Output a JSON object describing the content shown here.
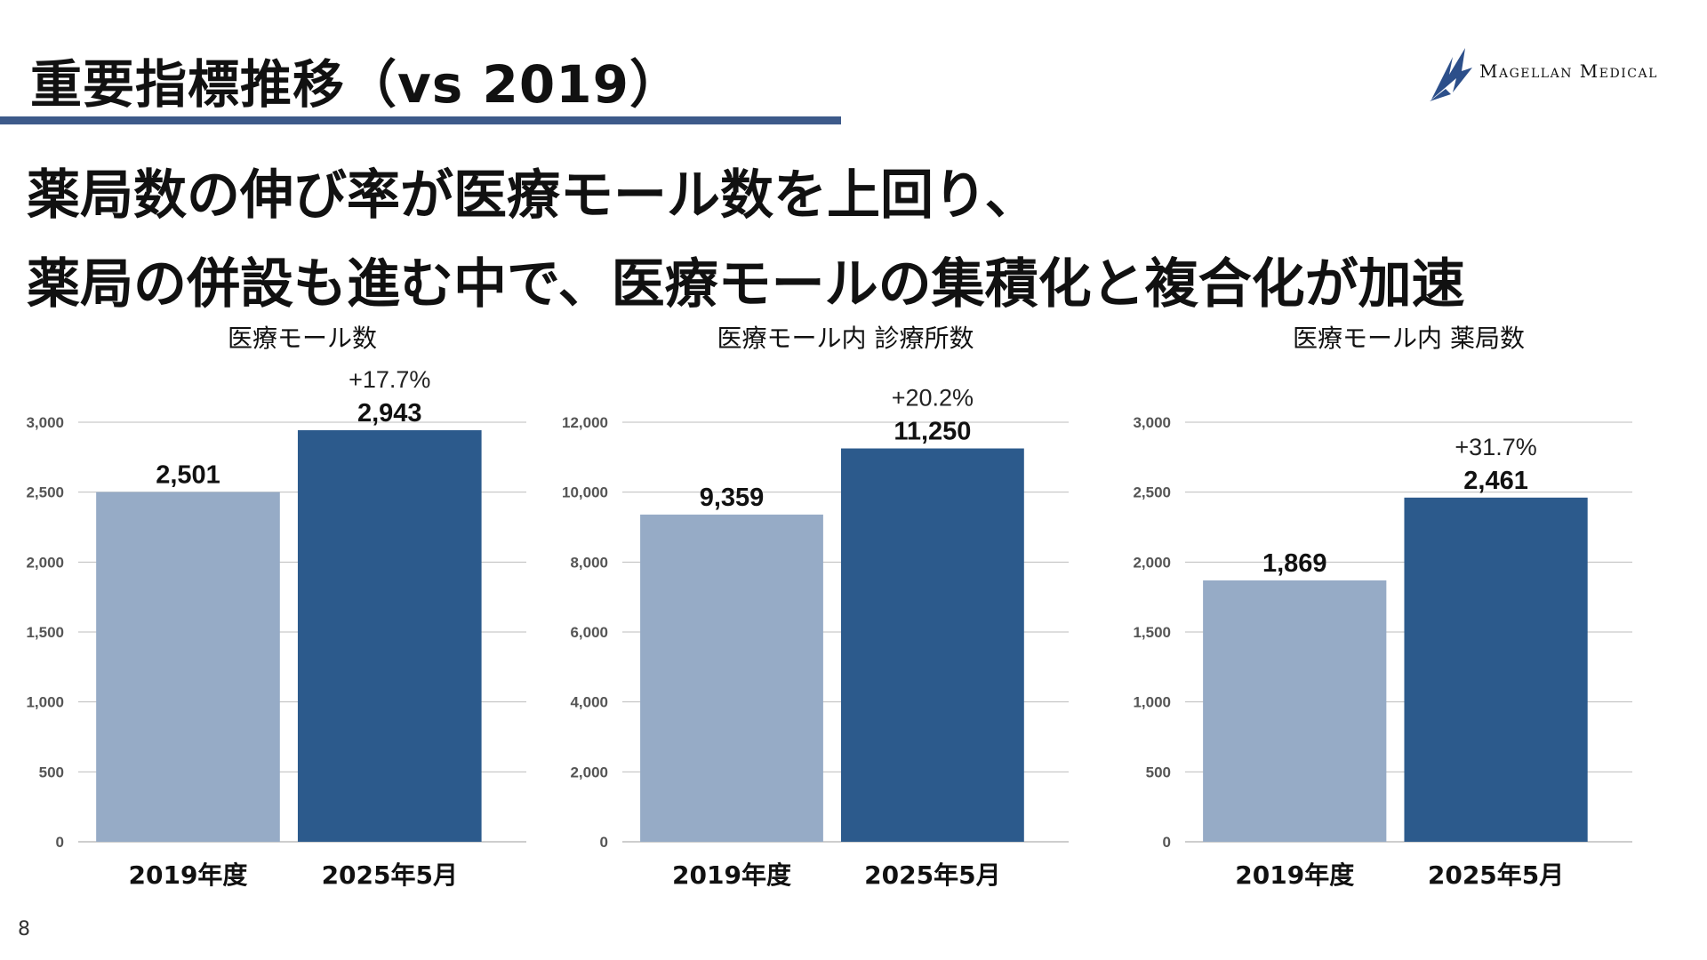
{
  "slide": {
    "title": "重要指標推移（vs 2019）",
    "headline_line1": "薬局数の伸び率が医療モール数を上回り、",
    "headline_line2": "薬局の併設も進む中で、医療モールの集積化と複合化が加速",
    "page_number": "8"
  },
  "logo": {
    "text": "Magellan Medical",
    "icon": "ship-sail-icon",
    "color": "#2c4f8a"
  },
  "colors": {
    "bar_2019": "#96abc6",
    "bar_2025": "#2c5a8c",
    "grid": "#bdbdbd",
    "title_rule": "#3d5a8a"
  },
  "chart_data": [
    {
      "type": "bar",
      "title": "医療モール数",
      "categories": [
        "2019年度",
        "2025年5月"
      ],
      "values": [
        2501,
        2943
      ],
      "value_labels": [
        "2,501",
        "2,943"
      ],
      "growth_label": "+17.7%",
      "ylim": [
        0,
        3000
      ],
      "yticks": [
        0,
        500,
        1000,
        1500,
        2000,
        2500,
        3000
      ],
      "ytick_labels": [
        "0",
        "500",
        "1,000",
        "1,500",
        "2,000",
        "2,500",
        "3,000"
      ],
      "grid": true
    },
    {
      "type": "bar",
      "title": "医療モール内 診療所数",
      "categories": [
        "2019年度",
        "2025年5月"
      ],
      "values": [
        9359,
        11250
      ],
      "value_labels": [
        "9,359",
        "11,250"
      ],
      "growth_label": "+20.2%",
      "ylim": [
        0,
        12000
      ],
      "yticks": [
        0,
        2000,
        4000,
        6000,
        8000,
        10000,
        12000
      ],
      "ytick_labels": [
        "0",
        "2,000",
        "4,000",
        "6,000",
        "8,000",
        "10,000",
        "12,000"
      ],
      "grid": true
    },
    {
      "type": "bar",
      "title": "医療モール内 薬局数",
      "categories": [
        "2019年度",
        "2025年5月"
      ],
      "values": [
        1869,
        2461
      ],
      "value_labels": [
        "1,869",
        "2,461"
      ],
      "growth_label": "+31.7%",
      "ylim": [
        0,
        3000
      ],
      "yticks": [
        0,
        500,
        1000,
        1500,
        2000,
        2500,
        3000
      ],
      "ytick_labels": [
        "0",
        "500",
        "1,000",
        "1,500",
        "2,000",
        "2,500",
        "3,000"
      ],
      "grid": true
    }
  ]
}
